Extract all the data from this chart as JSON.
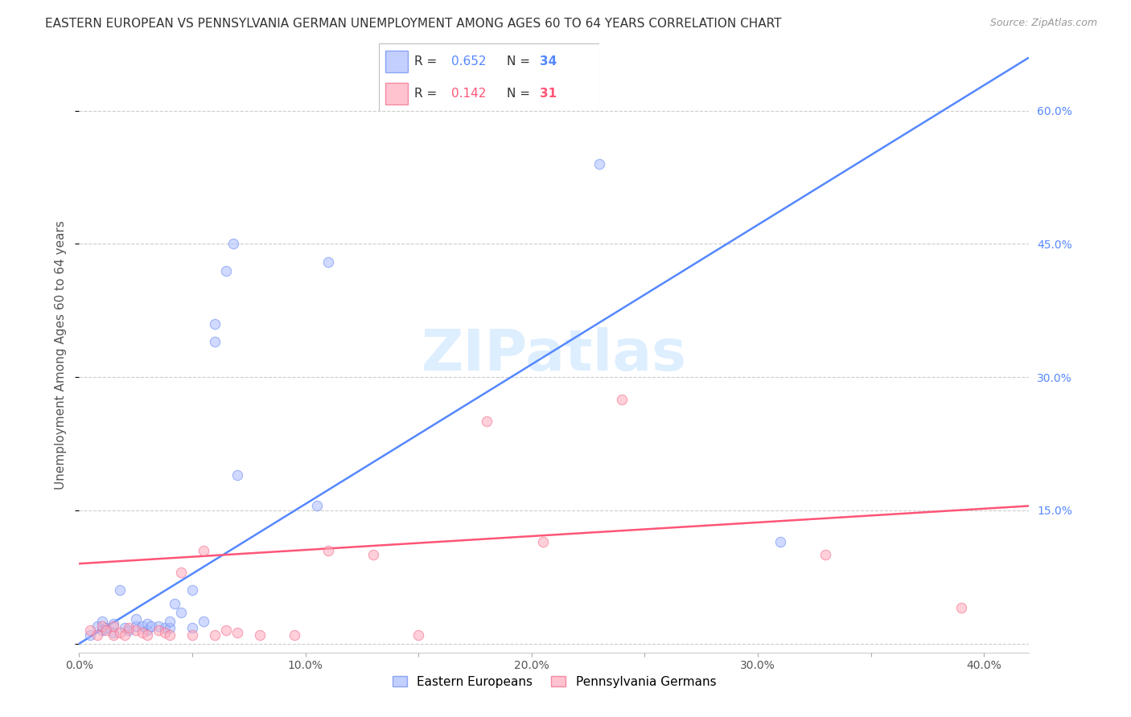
{
  "title": "EASTERN EUROPEAN VS PENNSYLVANIA GERMAN UNEMPLOYMENT AMONG AGES 60 TO 64 YEARS CORRELATION CHART",
  "source": "Source: ZipAtlas.com",
  "ylabel": "Unemployment Among Ages 60 to 64 years",
  "x_ticks": [
    0.0,
    0.05,
    0.1,
    0.15,
    0.2,
    0.25,
    0.3,
    0.35,
    0.4
  ],
  "x_tick_labels": [
    "0.0%",
    "",
    "10.0%",
    "",
    "20.0%",
    "",
    "30.0%",
    "",
    "40.0%"
  ],
  "y_ticks": [
    0.0,
    0.15,
    0.3,
    0.45,
    0.6
  ],
  "y_tick_labels": [
    "",
    "15.0%",
    "30.0%",
    "45.0%",
    "60.0%"
  ],
  "xlim": [
    0.0,
    0.42
  ],
  "ylim": [
    -0.01,
    0.66
  ],
  "background_color": "#ffffff",
  "grid_color": "#cccccc",
  "watermark": "ZIPatlas",
  "blue_scatter_color": "#aabbff",
  "blue_edge_color": "#6688ee",
  "pink_scatter_color": "#ffaabb",
  "pink_edge_color": "#ee6688",
  "blue_line_color": "#5588ff",
  "pink_line_color": "#ff5577",
  "blue_label": "Eastern Europeans",
  "pink_label": "Pennsylvania Germans",
  "blue_R": "0.652",
  "blue_N": "34",
  "pink_R": "0.142",
  "pink_N": "31",
  "blue_scatter_x": [
    0.005,
    0.008,
    0.01,
    0.01,
    0.012,
    0.015,
    0.015,
    0.018,
    0.02,
    0.022,
    0.025,
    0.025,
    0.028,
    0.03,
    0.03,
    0.032,
    0.035,
    0.038,
    0.04,
    0.04,
    0.042,
    0.045,
    0.05,
    0.05,
    0.055,
    0.06,
    0.06,
    0.065,
    0.068,
    0.07,
    0.105,
    0.11,
    0.23,
    0.31
  ],
  "blue_scatter_y": [
    0.01,
    0.02,
    0.015,
    0.025,
    0.018,
    0.012,
    0.022,
    0.06,
    0.018,
    0.015,
    0.02,
    0.028,
    0.02,
    0.015,
    0.022,
    0.02,
    0.02,
    0.018,
    0.018,
    0.025,
    0.045,
    0.035,
    0.018,
    0.06,
    0.025,
    0.34,
    0.36,
    0.42,
    0.45,
    0.19,
    0.155,
    0.43,
    0.54,
    0.115
  ],
  "pink_scatter_x": [
    0.005,
    0.008,
    0.01,
    0.012,
    0.015,
    0.015,
    0.018,
    0.02,
    0.022,
    0.025,
    0.028,
    0.03,
    0.035,
    0.038,
    0.04,
    0.045,
    0.05,
    0.055,
    0.06,
    0.065,
    0.07,
    0.08,
    0.095,
    0.11,
    0.13,
    0.15,
    0.18,
    0.205,
    0.24,
    0.33,
    0.39
  ],
  "pink_scatter_y": [
    0.015,
    0.01,
    0.02,
    0.015,
    0.01,
    0.02,
    0.012,
    0.01,
    0.018,
    0.015,
    0.012,
    0.01,
    0.015,
    0.012,
    0.01,
    0.08,
    0.01,
    0.105,
    0.01,
    0.015,
    0.012,
    0.01,
    0.01,
    0.105,
    0.1,
    0.01,
    0.25,
    0.115,
    0.275,
    0.1,
    0.04
  ],
  "blue_line_x0": 0.0,
  "blue_line_x1": 0.42,
  "blue_line_y0": 0.0,
  "blue_line_y1": 0.66,
  "pink_line_x0": 0.0,
  "pink_line_x1": 0.42,
  "pink_line_y0": 0.09,
  "pink_line_y1": 0.155,
  "right_axis_color": "#5588ff",
  "title_fontsize": 11,
  "axis_label_fontsize": 11,
  "tick_fontsize": 10,
  "legend_fontsize": 11,
  "watermark_color": "#ddeeff",
  "watermark_fontsize": 52,
  "scatter_size": 80,
  "scatter_alpha": 0.55
}
